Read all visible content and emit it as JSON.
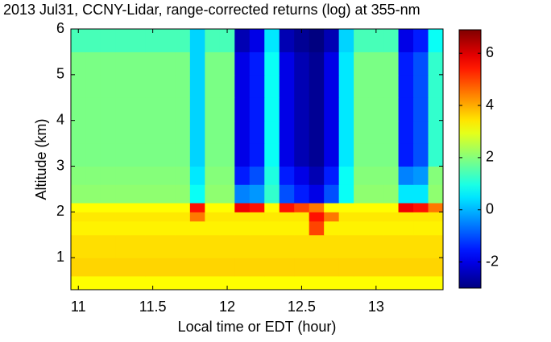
{
  "chart_data": {
    "type": "heatmap",
    "title": "2013 Jul31, CCNY-Lidar, range-corrected returns (log) at 355-nm",
    "xlabel": "Local time or EDT (hour)",
    "ylabel": "Altitude (km)",
    "colormap": "jet",
    "xlim": [
      10.95,
      13.45
    ],
    "xticks": [
      11,
      11.5,
      12,
      12.5,
      13
    ],
    "ylim": [
      0.3,
      6
    ],
    "yticks": [
      1,
      2,
      3,
      4,
      5,
      6
    ],
    "clim": [
      -3,
      6.9
    ],
    "cticks": [
      -2,
      0,
      2,
      4,
      6
    ],
    "x_bins": [
      10.95,
      11.05,
      11.15,
      11.25,
      11.35,
      11.45,
      11.55,
      11.65,
      11.75,
      11.85,
      11.95,
      12.05,
      12.15,
      12.25,
      12.35,
      12.45,
      12.55,
      12.65,
      12.75,
      12.85,
      12.95,
      13.05,
      13.15,
      13.25,
      13.35,
      13.45
    ],
    "y_bins": [
      0.3,
      0.6,
      1.0,
      1.5,
      1.8,
      2.0,
      2.2,
      2.6,
      3.0,
      3.5,
      4.0,
      4.5,
      5.0,
      5.5,
      6.0
    ],
    "z": [
      [
        3.2,
        3.2,
        3.2,
        3.2,
        3.2,
        3.2,
        3.2,
        3.2,
        3.2,
        3.2,
        3.2,
        3.2,
        3.2,
        3.2,
        3.2,
        3.2,
        3.2,
        3.2,
        3.2,
        3.2,
        3.2,
        3.2,
        3.2,
        3.2,
        3.2
      ],
      [
        3.6,
        3.6,
        3.6,
        3.6,
        3.6,
        3.6,
        3.6,
        3.6,
        3.6,
        3.6,
        3.6,
        3.6,
        3.6,
        3.6,
        3.6,
        3.6,
        3.6,
        3.6,
        3.6,
        3.6,
        3.6,
        3.6,
        3.6,
        3.6,
        3.6
      ],
      [
        3.5,
        3.5,
        3.5,
        3.5,
        3.5,
        3.5,
        3.5,
        3.5,
        3.5,
        3.5,
        3.5,
        3.5,
        3.5,
        3.5,
        3.5,
        3.5,
        3.5,
        3.5,
        3.5,
        3.5,
        3.5,
        3.5,
        3.5,
        3.5,
        3.5
      ],
      [
        3.3,
        3.3,
        3.3,
        3.3,
        3.3,
        3.3,
        3.3,
        3.3,
        3.3,
        3.3,
        3.3,
        3.3,
        3.3,
        3.3,
        3.3,
        3.3,
        5.0,
        3.3,
        3.3,
        3.3,
        3.3,
        3.3,
        3.3,
        3.3,
        3.3
      ],
      [
        3.4,
        3.4,
        3.4,
        3.4,
        3.4,
        3.4,
        3.4,
        3.4,
        4.5,
        3.4,
        3.4,
        3.4,
        3.4,
        3.4,
        3.4,
        3.4,
        5.5,
        4.5,
        3.4,
        3.4,
        3.4,
        3.4,
        3.4,
        3.4,
        3.4
      ],
      [
        3.2,
        3.2,
        3.2,
        3.2,
        3.2,
        3.2,
        3.2,
        3.2,
        5.5,
        3.2,
        3.2,
        5.8,
        5.5,
        3.2,
        5.5,
        5.0,
        4.5,
        3.2,
        3.2,
        3.2,
        3.2,
        3.2,
        5.8,
        5.5,
        4.5
      ],
      [
        2.1,
        2.1,
        2.1,
        2.1,
        2.1,
        2.1,
        2.1,
        2.1,
        0.8,
        2.1,
        2.1,
        -0.5,
        -0.3,
        1.2,
        -1,
        -1.5,
        -2,
        -1,
        0.8,
        2.1,
        2.1,
        2.1,
        0.5,
        0.5,
        2.1
      ],
      [
        2.0,
        2.0,
        2.0,
        2.0,
        2.0,
        2.0,
        2.0,
        2.0,
        0.5,
        2.0,
        2.0,
        -1.5,
        -1,
        1.0,
        -1.5,
        -2,
        -2.5,
        -1.5,
        0.8,
        2.0,
        2.0,
        2.0,
        -0.5,
        -0.3,
        2.0
      ],
      [
        1.9,
        1.9,
        1.9,
        1.9,
        1.9,
        1.9,
        1.9,
        1.9,
        0.3,
        1.9,
        1.9,
        -2,
        -1.5,
        0.8,
        -2,
        -2.5,
        -2.8,
        -2,
        0.5,
        1.9,
        1.9,
        1.9,
        -1.5,
        -1,
        1.2
      ],
      [
        1.9,
        1.9,
        1.9,
        1.9,
        1.9,
        1.9,
        1.9,
        1.9,
        0.3,
        1.9,
        1.9,
        -2,
        -1.5,
        0.8,
        -2,
        -2.5,
        -2.8,
        -2,
        0.5,
        1.9,
        1.9,
        1.9,
        -1.5,
        -1,
        1.2
      ],
      [
        1.9,
        1.9,
        1.9,
        1.9,
        1.9,
        1.9,
        1.9,
        1.9,
        0.3,
        1.9,
        1.9,
        -2,
        -1.5,
        0.8,
        -2,
        -2.5,
        -2.8,
        -2,
        0.5,
        1.9,
        1.9,
        1.9,
        -1.5,
        -1,
        1.2
      ],
      [
        1.9,
        1.9,
        1.9,
        1.9,
        1.9,
        1.9,
        1.9,
        1.9,
        0.3,
        1.9,
        1.9,
        -2,
        -1.5,
        0.8,
        -2,
        -2.5,
        -2.8,
        -2,
        0.5,
        1.9,
        1.9,
        1.9,
        -1.5,
        -1,
        1.2
      ],
      [
        1.9,
        1.9,
        1.9,
        1.9,
        1.9,
        1.9,
        1.9,
        1.9,
        0.3,
        1.9,
        1.9,
        -2,
        -1.5,
        0.8,
        -2,
        -2.5,
        -2.8,
        -2,
        0.5,
        1.9,
        1.9,
        1.9,
        -1.5,
        -1,
        1.2
      ],
      [
        1.4,
        1.4,
        1.4,
        1.4,
        1.4,
        1.4,
        1.4,
        1.4,
        0.3,
        1.4,
        1.4,
        -2.5,
        -2,
        0.5,
        -2.5,
        -2.8,
        -3,
        -2.5,
        0.3,
        1.4,
        1.4,
        1.4,
        -2,
        -1.5,
        0.8
      ]
    ]
  }
}
